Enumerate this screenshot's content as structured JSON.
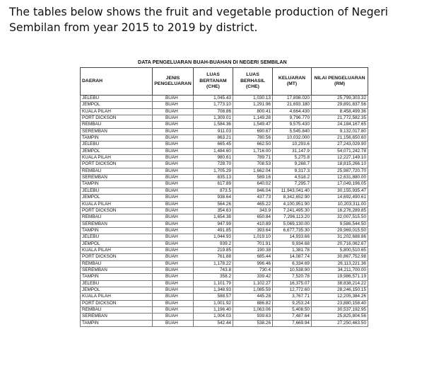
{
  "intro_text": "The tables below shows the fruit and vegetable production of Negeri Sembilan from year 2015 to 2019 by district.",
  "table": {
    "title": "DATA PENGELUARAN BUAH-BUAHAN DI NEGERI SEMBILAN",
    "headers": [
      "DAERAH",
      "JENIS PENGELUARAN",
      "LUAS BERTANAM (CHE)",
      "LUAS BERHASIL (CHE)",
      "KELUARAN (MT)",
      "NILAI PENGELUARAN (RM)"
    ],
    "rows": [
      [
        "JELEBU",
        "BUAH",
        "1,045.43",
        "1,030.13",
        "17,898.020",
        "25,799,303.32"
      ],
      [
        "JEMPOL",
        "BUAH",
        "1,773.10",
        "1,291.96",
        "21,693.180",
        "29,891,837.56"
      ],
      [
        "KUALA PILAH",
        "BUAH",
        "708.86",
        "800.41",
        "4,664.430",
        "8,458,499.36"
      ],
      [
        "PORT DICKSON",
        "BUAH",
        "1,309.01",
        "1,149.28",
        "9,796.770",
        "21,772,582.35"
      ],
      [
        "REMBAU",
        "BUAH",
        "1,584.36",
        "1,549.47",
        "9,575.430",
        "24,184,167.65"
      ],
      [
        "SEREMBAN",
        "BUAH",
        "911.03",
        "690.67",
        "5,545.840",
        "9,132,017.80"
      ],
      [
        "TAMPIN",
        "BUAH",
        "863.21",
        "780.56",
        "10,032.000",
        "21,156,650.60"
      ],
      [
        "JELEBU",
        "BUAH",
        "665.45",
        "662.50",
        "10,293.6",
        "27,243,029.90"
      ],
      [
        "JEMPOL",
        "BUAH",
        "1,484.60",
        "1,716.00",
        "31,147.9",
        "54,071,242.78"
      ],
      [
        "KUALA PILAH",
        "BUAH",
        "980.61",
        "789.71",
        "5,275.8",
        "12,227,149.10"
      ],
      [
        "PORT DICKSON",
        "BUAH",
        "728.70",
        "708.53",
        "9,268.7",
        "18,815,266.10"
      ],
      [
        "REMBAU",
        "BUAH",
        "1,705.29",
        "1,662.04",
        "9,317.3",
        "25,987,720.70"
      ],
      [
        "SEREMBAN",
        "BUAH",
        "835.13",
        "589.16",
        "4,518.2",
        "12,631,880.00"
      ],
      [
        "TAMPIN",
        "BUAH",
        "617.89",
        "640.02",
        "7,295.7",
        "17,049,196.05"
      ],
      [
        "JELEBU",
        "BUAH",
        "873.5",
        "846.04",
        "11,943,041.40",
        "30,155,935.47"
      ],
      [
        "JEMPOL",
        "BUAH",
        "938.64",
        "437.73",
        "8,342,652.90",
        "14,692,490.61"
      ],
      [
        "KUALA PILAH",
        "BUAH",
        "564.26",
        "465.22",
        "4,100,951.90",
        "10,203,311.00"
      ],
      [
        "PORT DICKSON",
        "BUAH",
        "354.63",
        "343.9",
        "7,241,495.30",
        "16,276,289.85"
      ],
      [
        "REMBAU",
        "BUAH",
        "1,654.38",
        "650.84",
        "7,296,113.20",
        "32,007,515.50"
      ],
      [
        "SEREMBAN",
        "BUAH",
        "947.99",
        "410.89",
        "5,069,130.00",
        "9,586,544.50"
      ],
      [
        "TAMPIN",
        "BUAH",
        "491.85",
        "393.64",
        "6,677,735.30",
        "29,969,015.50"
      ],
      [
        "JELEBU",
        "BUAH",
        "1,044.93",
        "1,019.10",
        "14,933.66",
        "31,202,688.86"
      ],
      [
        "JEMPOL",
        "BUAH",
        "939.2",
        "701.91",
        "9,934.68",
        "20,716,062.67"
      ],
      [
        "KUALA PILAH",
        "BUAH",
        "219.85",
        "190.38",
        "1,381.78",
        "5,800,510.65"
      ],
      [
        "PORT DICKSON",
        "BUAH",
        "761.88",
        "685.44",
        "14,087.74",
        "30,867,752.98"
      ],
      [
        "REMBAU",
        "BUAH",
        "1,178.22",
        "996.46",
        "6,334.69",
        "26,113,221.36"
      ],
      [
        "SEREMBAN",
        "BUAH",
        "743.8",
        "730.4",
        "10,538.90",
        "34,211,700.00"
      ],
      [
        "TAMPIN",
        "BUAH",
        "358.2",
        "339.42",
        "7,520.78",
        "19,986,571.19"
      ],
      [
        "JELEBU",
        "BUAH",
        "1,101.79",
        "1,102.27",
        "16,375.07",
        "38,838,214.22"
      ],
      [
        "JEMPOL",
        "BUAH",
        "1,348.93",
        "1,085.59",
        "12,772.60",
        "28,246,150.15"
      ],
      [
        "KUALA PILAH",
        "BUAH",
        "588.57",
        "445.28",
        "3,767.71",
        "12,205,384.26"
      ],
      [
        "PORT DICKSON",
        "BUAH",
        "1,001.92",
        "886.82",
        "9,253.24",
        "23,880,158.40"
      ],
      [
        "REMBAU",
        "BUAH",
        "1,196.40",
        "1,063.06",
        "5,408.50",
        "30,537,192.95"
      ],
      [
        "SEREMBAN",
        "BUAH",
        "1,004.03",
        "939.63",
        "7,487.64",
        "25,825,804.56"
      ],
      [
        "TAMPIN",
        "BUAH",
        "542.44",
        "538.26",
        "7,669.94",
        "27,250,463.50"
      ]
    ]
  }
}
